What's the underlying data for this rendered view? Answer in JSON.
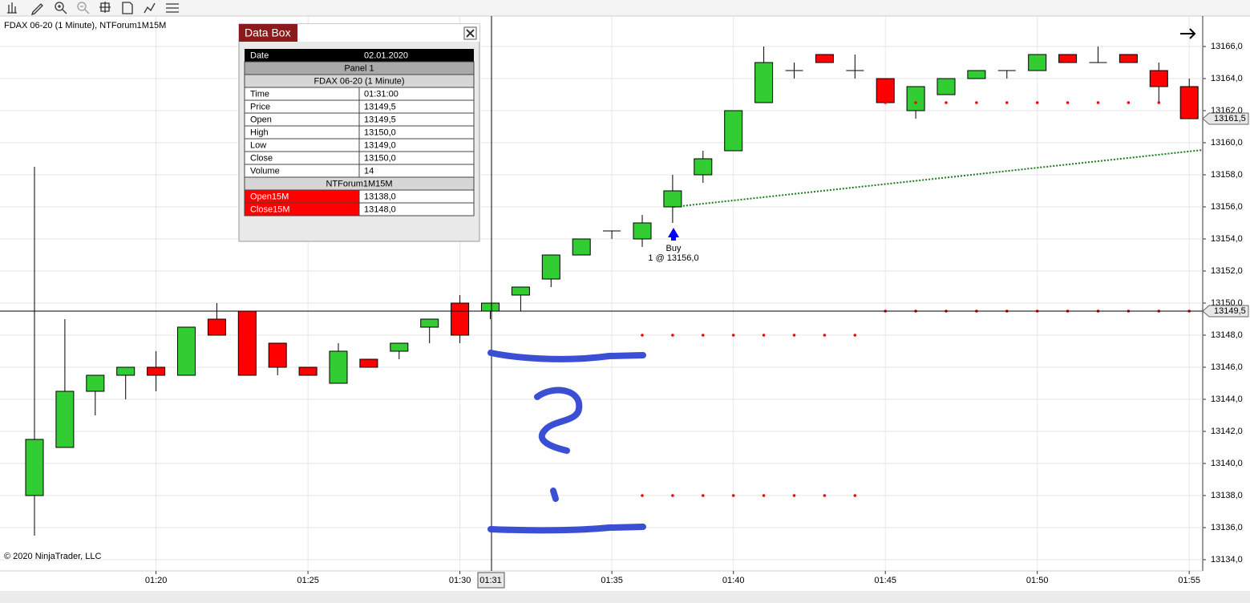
{
  "chart_data": {
    "type": "candlestick",
    "title": "FDAX 06-20 (1 Minute), NTForum1M15M",
    "copyright": "© 2020 NinjaTrader, LLC",
    "categories": [
      null,
      null,
      null,
      null,
      "01:20",
      null,
      null,
      null,
      null,
      "01:25",
      null,
      null,
      null,
      null,
      "01:30",
      null,
      null,
      null,
      null,
      "01:35",
      null,
      null,
      null,
      "01:40",
      null,
      null,
      null,
      null,
      "01:45",
      null,
      null,
      null,
      null,
      "01:50",
      null,
      null,
      null,
      null,
      "01:55"
    ],
    "open": [
      13138,
      13141,
      13144.5,
      13145.5,
      13146,
      13145.5,
      13149,
      13149.5,
      13147.5,
      13146,
      13145,
      13146.5,
      13147,
      13148.5,
      13150,
      13149.5,
      13150.5,
      13151.5,
      13153,
      13154.5,
      13154,
      13156,
      13158,
      13159.5,
      13162.5,
      13164.5,
      13165.5,
      13164.5,
      13164,
      13162,
      13163,
      13164,
      13164.5,
      13164.5,
      13165.5,
      13165,
      13165.5,
      13164.5,
      13163.5
    ],
    "high": [
      13158.5,
      13149,
      13145.5,
      13146,
      13147,
      13148.5,
      13150,
      13149.5,
      13147.5,
      13146,
      13147.5,
      13146.5,
      13147.5,
      13149,
      13150.5,
      13150,
      13151,
      13153,
      13154,
      13154.5,
      13155.5,
      13158,
      13159.5,
      13162,
      13166,
      13165,
      13165.5,
      13165.5,
      13164,
      13163.5,
      13164,
      13164.5,
      13164.5,
      13165.5,
      13165.5,
      13166,
      13165.5,
      13165,
      13164
    ],
    "low": [
      13135.5,
      13141,
      13143,
      13144,
      13144.5,
      13145.5,
      13148,
      13145.5,
      13145.5,
      13145.5,
      13145,
      13146,
      13146.5,
      13147.5,
      13147.5,
      13149,
      13149.5,
      13151,
      13153,
      13154,
      13153.5,
      13155,
      13157.5,
      13159.5,
      13162.5,
      13164,
      13165,
      13164,
      13162.5,
      13161.5,
      13163,
      13164,
      13164,
      13164.5,
      13165,
      13165,
      13165,
      13162.5,
      13161.5
    ],
    "close": [
      13141.5,
      13144.5,
      13145.5,
      13146,
      13145.5,
      13148.5,
      13148,
      13145.5,
      13146,
      13145.5,
      13147,
      13146,
      13147.5,
      13149,
      13148,
      13150,
      13151,
      13153,
      13154,
      13154.5,
      13155,
      13157,
      13159,
      13162,
      13165,
      13164.5,
      13165,
      13164.5,
      13162.5,
      13163.5,
      13164,
      13164.5,
      13164.5,
      13165.5,
      13165,
      13165,
      13165,
      13163.5,
      13161.5
    ],
    "up_color": "#32cd32",
    "down_color": "#ff0000",
    "series": [
      {
        "name": "Open15M",
        "color": "#ff0000",
        "values": [
          null,
          null,
          null,
          null,
          null,
          null,
          null,
          null,
          null,
          null,
          null,
          null,
          null,
          null,
          null,
          null,
          null,
          null,
          null,
          null,
          13138,
          13138,
          13138,
          13138,
          13138,
          13138,
          13138,
          13138,
          13149.5,
          13149.5,
          13149.5,
          13149.5,
          13149.5,
          13149.5,
          13149.5,
          13149.5,
          13149.5,
          13149.5,
          13149.5
        ]
      },
      {
        "name": "Close15M",
        "color": "#ff0000",
        "values": [
          null,
          null,
          null,
          null,
          null,
          null,
          null,
          null,
          null,
          null,
          null,
          null,
          null,
          null,
          null,
          null,
          null,
          null,
          null,
          null,
          13148,
          13148,
          13148,
          13148,
          13148,
          13148,
          13148,
          13148,
          13162.5,
          13162.5,
          13162.5,
          13162.5,
          13162.5,
          13162.5,
          13162.5,
          13162.5,
          13162.5,
          13162.5,
          13162.5
        ]
      }
    ],
    "ylim": [
      13133.3,
      13167.9
    ],
    "yticks": [
      {
        "value": 13134,
        "label": "13134,0"
      },
      {
        "value": 13136,
        "label": "13136,0"
      },
      {
        "value": 13138,
        "label": "13138,0"
      },
      {
        "value": 13140,
        "label": "13140,0"
      },
      {
        "value": 13142,
        "label": "13142,0"
      },
      {
        "value": 13144,
        "label": "13144,0"
      },
      {
        "value": 13146,
        "label": "13146,0"
      },
      {
        "value": 13148,
        "label": "13148,0"
      },
      {
        "value": 13150,
        "label": "13150,0"
      },
      {
        "value": 13152,
        "label": "13152,0"
      },
      {
        "value": 13154,
        "label": "13154,0"
      },
      {
        "value": 13156,
        "label": "13156,0"
      },
      {
        "value": 13158,
        "label": "13158,0"
      },
      {
        "value": 13160,
        "label": "13160,0"
      },
      {
        "value": 13162,
        "label": "13162,0"
      },
      {
        "value": 13164,
        "label": "13164,0"
      },
      {
        "value": 13166,
        "label": "13166,0"
      }
    ],
    "grid": true,
    "last_price": {
      "value": 13161.5,
      "label": "13161,5"
    },
    "crosshair": {
      "value": 13149.5,
      "label": "13149,5",
      "time_label": "01:31"
    },
    "annotation": {
      "text": "Buy",
      "detail": "1 @ 13156,0"
    }
  },
  "data_box": {
    "title": "Data Box",
    "date_label": "Date",
    "date": "02.01.2020",
    "panel": "Panel 1",
    "instrument": "FDAX 06-20 (1 Minute)",
    "rows": [
      [
        "Time",
        "01:31:00"
      ],
      [
        "Price",
        "13149,5"
      ],
      [
        "Open",
        "13149,5"
      ],
      [
        "High",
        "13150,0"
      ],
      [
        "Low",
        "13149,0"
      ],
      [
        "Close",
        "13150,0"
      ],
      [
        "Volume",
        "14"
      ]
    ],
    "indicator": "NTForum1M15M",
    "indicator_rows": [
      [
        "Open15M",
        "13138,0"
      ],
      [
        "Close15M",
        "13148,0"
      ]
    ]
  }
}
